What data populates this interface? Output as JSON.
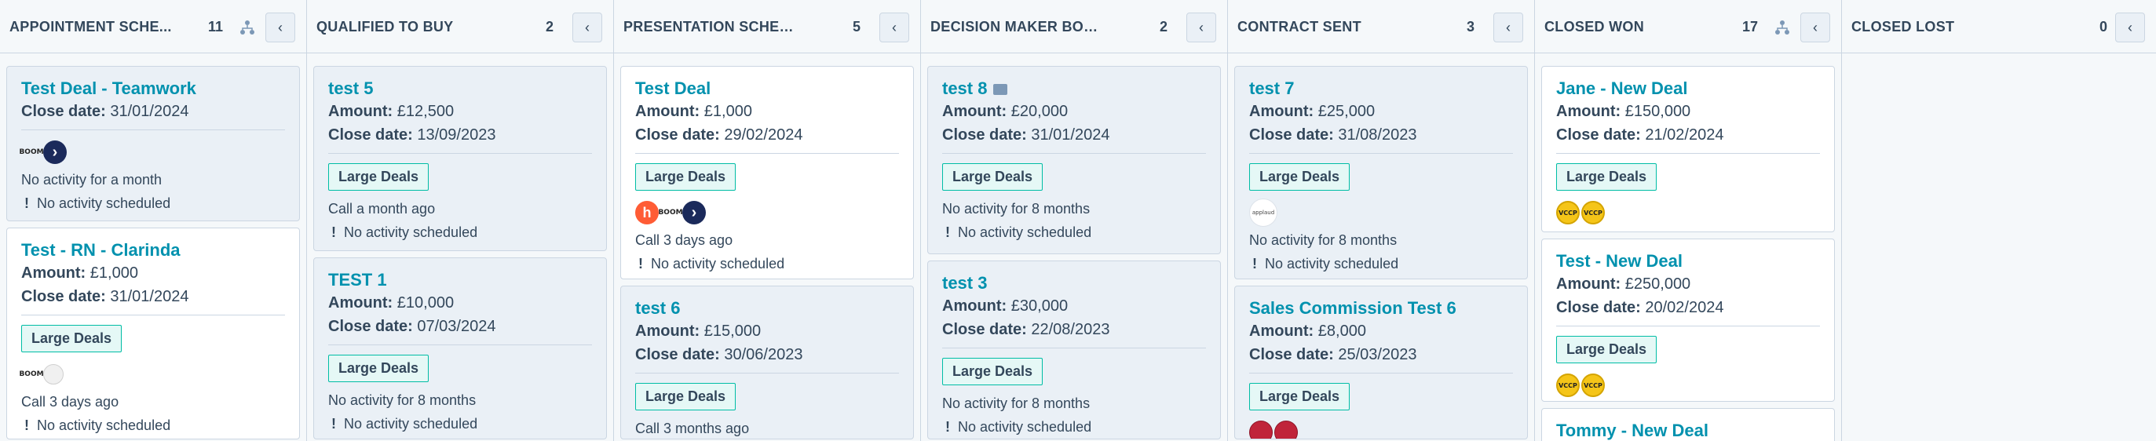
{
  "columns": {
    "c1": {
      "title": "APPOINTMENT SCHE...",
      "count": "11"
    },
    "c2": {
      "title": "QUALIFIED TO BUY",
      "count": "2"
    },
    "c3": {
      "title": "PRESENTATION SCHEDULED",
      "count": "5"
    },
    "c4": {
      "title": "DECISION MAKER BOUGHT-...",
      "count": "2"
    },
    "c5": {
      "title": "CONTRACT SENT",
      "count": "3"
    },
    "c6": {
      "title": "CLOSED WON",
      "count": "17"
    },
    "c7": {
      "title": "CLOSED LOST",
      "count": "0"
    }
  },
  "labels": {
    "amount": "Amount:",
    "close_date": "Close date:",
    "large_deals": "Large Deals",
    "collapse": "‹",
    "warn": "!"
  },
  "cards": {
    "c1a": {
      "name": "Test Deal - Teamwork",
      "close": "31/01/2024",
      "activity": "No activity for a month",
      "next": "No activity scheduled"
    },
    "c1b": {
      "name": "Test - RN - Clarinda",
      "amount": "£1,000",
      "close": "31/01/2024",
      "activity": "Call 3 days ago",
      "next": "No activity scheduled"
    },
    "c2a": {
      "name": "test 5",
      "amount": "£12,500",
      "close": "13/09/2023",
      "activity": "Call a month ago",
      "next": "No activity scheduled"
    },
    "c2b": {
      "name": "TEST 1",
      "amount": "£10,000",
      "close": "07/03/2024",
      "activity": "No activity for 8 months",
      "next": "No activity scheduled"
    },
    "c3a": {
      "name": "Test Deal",
      "amount": "£1,000",
      "close": "29/02/2024",
      "activity": "Call 3 days ago",
      "next": "No activity scheduled"
    },
    "c3b": {
      "name": "test 6",
      "amount": "£15,000",
      "close": "30/06/2023",
      "activity": "Call 3 months ago"
    },
    "c4a": {
      "name": "test 8",
      "amount": "£20,000",
      "close": "31/01/2024",
      "activity": "No activity for 8 months",
      "next": "No activity scheduled"
    },
    "c4b": {
      "name": "test 3",
      "amount": "£30,000",
      "close": "22/08/2023",
      "activity": "No activity for 8 months",
      "next": "No activity scheduled"
    },
    "c5a": {
      "name": "test 7",
      "amount": "£25,000",
      "close": "31/08/2023",
      "activity": "No activity for 8 months",
      "next": "No activity scheduled"
    },
    "c5b": {
      "name": "Sales Commission Test 6",
      "amount": "£8,000",
      "close": "25/03/2023"
    },
    "c6a": {
      "name": "Jane - New Deal",
      "amount": "£150,000",
      "close": "21/02/2024"
    },
    "c6b": {
      "name": "Test - New Deal",
      "amount": "£250,000",
      "close": "20/02/2024"
    },
    "c6c": {
      "name": "Tommy - New Deal"
    }
  },
  "logos": {
    "boom": "BOOM",
    "hub": "h",
    "arrow": "›",
    "vccp": "VCCP",
    "app": "applaud"
  },
  "icons": {
    "tree": "tree-structure-icon",
    "collapse": "chevron-left-icon",
    "flag": "flag-icon",
    "warn": "exclamation-icon"
  },
  "colors": {
    "link": "#0091ae",
    "tag_border": "#00bda5",
    "card_bg": "#eaf0f6"
  }
}
